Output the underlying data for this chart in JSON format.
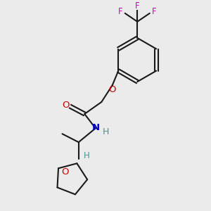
{
  "background_color": "#ebebeb",
  "bond_color": "#1a1a1a",
  "oxygen_color": "#cc0000",
  "nitrogen_color": "#0000cc",
  "fluorine_color": "#cc00cc",
  "hydrogen_color": "#4a9090",
  "figsize": [
    3.0,
    3.0
  ],
  "dpi": 100,
  "xlim": [
    0,
    10
  ],
  "ylim": [
    0,
    10
  ]
}
